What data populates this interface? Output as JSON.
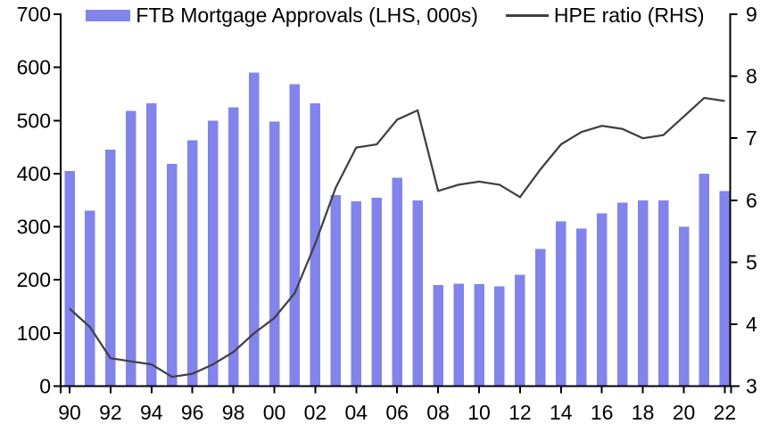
{
  "legend": {
    "bars_label": "FTB Mortgage Approvals (LHS, 000s)",
    "line_label": "HPE ratio (RHS)"
  },
  "colors": {
    "bar": "#8284ec",
    "line": "#404040",
    "axis": "#000000"
  },
  "chart_data": {
    "type": "bar+line combo",
    "title": "",
    "grid": false,
    "legend_position": "top",
    "x": [
      1990,
      1991,
      1992,
      1993,
      1994,
      1995,
      1996,
      1997,
      1998,
      1999,
      2000,
      2001,
      2002,
      2003,
      2004,
      2005,
      2006,
      2007,
      2008,
      2009,
      2010,
      2011,
      2012,
      2013,
      2014,
      2015,
      2016,
      2017,
      2018,
      2019,
      2020,
      2021,
      2022
    ],
    "x_tick_years": [
      1990,
      1992,
      1994,
      1996,
      1998,
      2000,
      2002,
      2004,
      2006,
      2008,
      2010,
      2012,
      2014,
      2016,
      2018,
      2020,
      2022
    ],
    "x_tick_labels": [
      "90",
      "92",
      "94",
      "96",
      "98",
      "00",
      "02",
      "04",
      "06",
      "08",
      "10",
      "12",
      "14",
      "16",
      "18",
      "20",
      "22"
    ],
    "series": [
      {
        "name": "FTB Mortgage Approvals (LHS, 000s)",
        "type": "bar",
        "axis": "left",
        "color": "#8284ec",
        "values": [
          405,
          330,
          445,
          518,
          532,
          418,
          463,
          500,
          525,
          590,
          498,
          568,
          532,
          360,
          348,
          355,
          392,
          350,
          190,
          193,
          192,
          188,
          210,
          258,
          310,
          297,
          325,
          345,
          350,
          350,
          300,
          400,
          367
        ]
      },
      {
        "name": "HPE ratio (RHS)",
        "type": "line",
        "axis": "right",
        "color": "#404040",
        "values": [
          4.25,
          3.95,
          3.45,
          3.4,
          3.35,
          3.15,
          3.2,
          3.35,
          3.55,
          3.85,
          4.1,
          4.5,
          5.3,
          6.2,
          6.85,
          6.9,
          7.3,
          7.45,
          6.15,
          6.25,
          6.3,
          6.25,
          6.05,
          6.5,
          6.9,
          7.1,
          7.2,
          7.15,
          7.0,
          7.05,
          7.35,
          7.65,
          7.6
        ]
      }
    ],
    "left_axis": {
      "min": 0,
      "max": 700,
      "tick_step": 100,
      "tick_values": [
        0,
        100,
        200,
        300,
        400,
        500,
        600,
        700
      ],
      "tick_labels": [
        "0",
        "100",
        "200",
        "300",
        "400",
        "500",
        "600",
        "700"
      ]
    },
    "right_axis": {
      "min": 3,
      "max": 9,
      "tick_step": 1,
      "tick_values": [
        3,
        4,
        5,
        6,
        7,
        8,
        9
      ],
      "tick_labels": [
        "3",
        "4",
        "5",
        "6",
        "7",
        "8",
        "9"
      ]
    }
  }
}
